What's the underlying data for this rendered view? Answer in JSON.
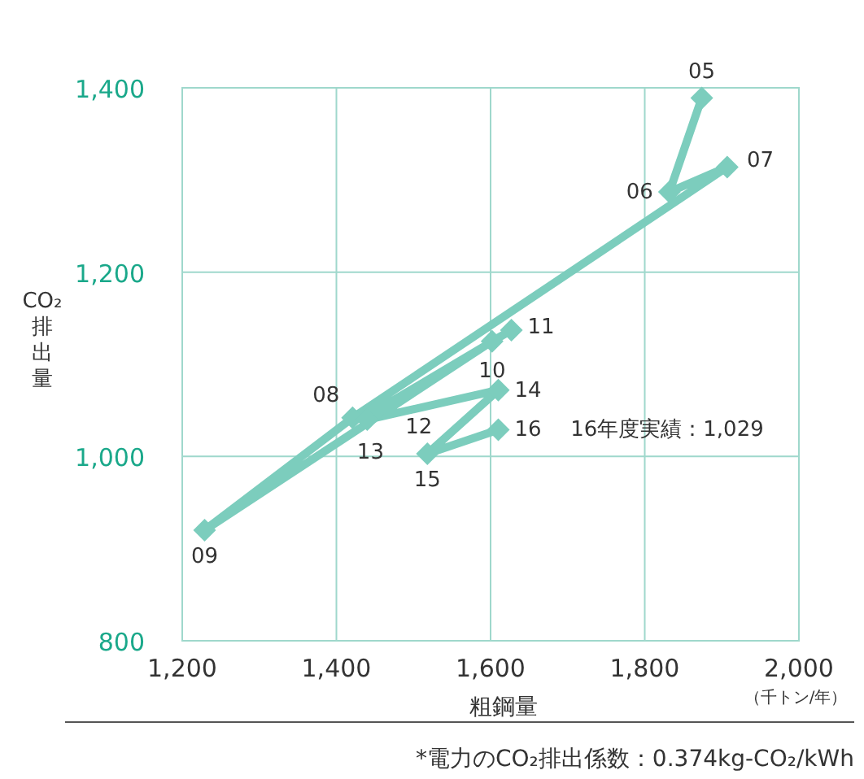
{
  "chart_data": {
    "type": "line",
    "xlabel": "粗鋼量",
    "ylabel": "CO₂排出量",
    "xlim": [
      1200,
      2000
    ],
    "xticks": [
      {
        "value": 1200,
        "label": "1,200"
      },
      {
        "value": 1400,
        "label": "1,400"
      },
      {
        "value": 1600,
        "label": "1,600"
      },
      {
        "value": 1800,
        "label": "1,800"
      },
      {
        "value": 2000,
        "label": "2,000"
      }
    ],
    "ylim": [
      800,
      1400
    ],
    "yticks": [
      800,
      {
        "value": 1000,
        "label": "1,000"
      },
      {
        "value": 1200,
        "label": "1,200"
      },
      {
        "value": 1400,
        "label": "1,400"
      }
    ],
    "grid": true,
    "marker": "diamond",
    "line_style": "solid",
    "series": [
      {
        "color": "#7ccdbd",
        "x": [
          1874,
          1832,
          1907,
          1421,
          1229,
          1602,
          1627,
          1452,
          1440,
          1610,
          1518,
          1610
        ],
        "values": [
          1389,
          1287,
          1314,
          1042,
          920,
          1125,
          1137,
          1050,
          1040,
          1072,
          1003,
          1029
        ]
      }
    ],
    "annotations": [
      {
        "text": "05",
        "x": 1874,
        "y": 1389
      },
      {
        "text": "06",
        "x": 1832,
        "y": 1287
      },
      {
        "text": "07",
        "x": 1907,
        "y": 1314
      },
      {
        "text": "08",
        "x": 1421,
        "y": 1042
      },
      {
        "text": "09",
        "x": 1229,
        "y": 920
      },
      {
        "text": "10",
        "x": 1602,
        "y": 1125
      },
      {
        "text": "11",
        "x": 1627,
        "y": 1137
      },
      {
        "text": "12",
        "x": 1452,
        "y": 1050
      },
      {
        "text": "13",
        "x": 1440,
        "y": 1040
      },
      {
        "text": "14",
        "x": 1610,
        "y": 1072
      },
      {
        "text": "15",
        "x": 1518,
        "y": 1003
      },
      {
        "text": "16",
        "x": 1610,
        "y": 1029
      },
      "16年度実績：1,029",
      "（千トン/年）",
      "*電力のCO₂排出係数：0.374kg-CO₂/kWh"
    ]
  }
}
